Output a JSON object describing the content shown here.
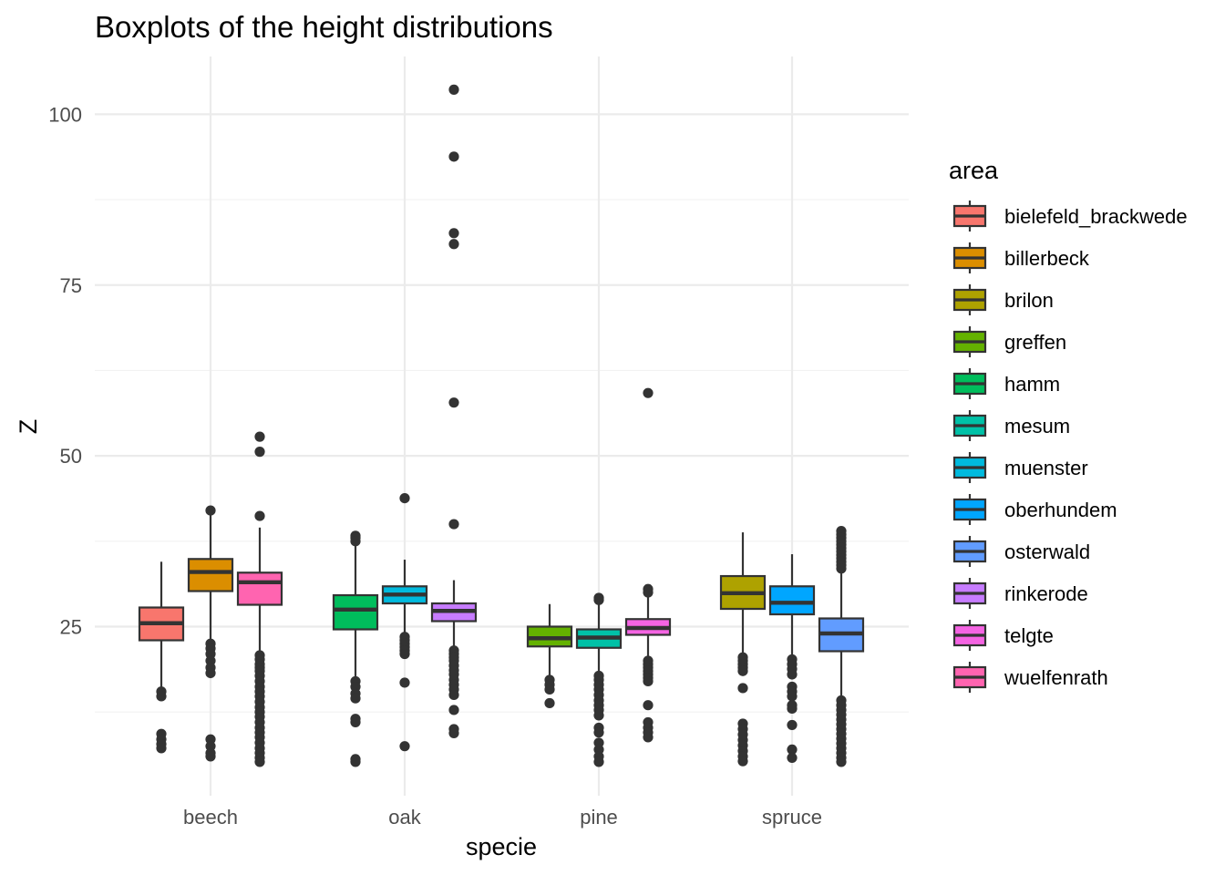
{
  "chart_data": {
    "type": "box",
    "title": "Boxplots of the height distributions",
    "xlabel": "specie",
    "ylabel": "Z",
    "ylim": [
      3,
      108
    ],
    "yticks": [
      25,
      50,
      75,
      100
    ],
    "grid": true,
    "legend": {
      "title": "area",
      "position": "right"
    },
    "categories": [
      "beech",
      "oak",
      "pine",
      "spruce"
    ],
    "series": [
      {
        "name": "bielefeld_brackwede",
        "color": "#F8766D"
      },
      {
        "name": "billerbeck",
        "color": "#DB8E00"
      },
      {
        "name": "brilon",
        "color": "#AEA200"
      },
      {
        "name": "greffen",
        "color": "#64B200"
      },
      {
        "name": "hamm",
        "color": "#00BD5C"
      },
      {
        "name": "mesum",
        "color": "#00C1A7"
      },
      {
        "name": "muenster",
        "color": "#00BADE"
      },
      {
        "name": "oberhundem",
        "color": "#00A6FF"
      },
      {
        "name": "osterwald",
        "color": "#619CFF"
      },
      {
        "name": "rinkerode",
        "color": "#C77CFF"
      },
      {
        "name": "telgte",
        "color": "#F564E3"
      },
      {
        "name": "wuelfenrath",
        "color": "#FF64B0"
      }
    ],
    "boxes": [
      {
        "category": "beech",
        "area": "bielefeld_brackwede",
        "whisker_low": 16,
        "q1": 23,
        "median": 25.5,
        "q3": 27.8,
        "whisker_high": 34.5,
        "outliers": [
          15.5,
          14.8,
          9.3,
          8.5,
          7.8,
          7.2
        ]
      },
      {
        "category": "beech",
        "area": "billerbeck",
        "whisker_low": 23,
        "q1": 30.2,
        "median": 33,
        "q3": 34.9,
        "whisker_high": 41.5,
        "outliers": [
          42,
          22.5,
          21.8,
          21,
          20,
          19,
          18.2,
          8.5,
          7.5,
          6.5,
          6
        ]
      },
      {
        "category": "beech",
        "area": "wuelfenrath",
        "whisker_low": 21,
        "q1": 28.2,
        "median": 31.5,
        "q3": 32.9,
        "whisker_high": 39.5,
        "outliers": [
          52.8,
          50.6,
          41.2,
          20.8,
          20.2,
          19.5,
          19,
          18.5,
          17.8,
          17,
          16.2,
          15.5,
          14.8,
          14,
          13.2,
          12.5,
          11.8,
          11,
          10.2,
          9.5,
          8.8,
          8,
          7.2,
          6.5,
          5.8,
          5.2
        ]
      },
      {
        "category": "oak",
        "area": "hamm",
        "whisker_low": 17.5,
        "q1": 24.6,
        "median": 27.5,
        "q3": 29.6,
        "whisker_high": 37,
        "outliers": [
          38.3,
          38,
          37.5,
          17,
          16.2,
          15.2,
          14.5,
          11.5,
          11,
          5.6,
          5.2
        ]
      },
      {
        "category": "oak",
        "area": "muenster",
        "whisker_low": 24,
        "q1": 28.4,
        "median": 29.7,
        "q3": 30.9,
        "whisker_high": 34.8,
        "outliers": [
          43.8,
          23.5,
          23,
          22.5,
          22,
          21.5,
          21,
          16.8,
          7.5
        ]
      },
      {
        "category": "oak",
        "area": "rinkerode",
        "whisker_low": 22,
        "q1": 25.8,
        "median": 27.3,
        "q3": 28.4,
        "whisker_high": 31.8,
        "outliers": [
          103.6,
          93.8,
          82.6,
          81,
          57.8,
          40,
          21.5,
          21,
          20.5,
          20,
          19.3,
          18.6,
          18,
          17.2,
          16.5,
          15.8,
          15,
          12.8,
          10,
          9.4
        ]
      },
      {
        "category": "pine",
        "area": "greffen",
        "whisker_low": 17.5,
        "q1": 22.1,
        "median": 23.3,
        "q3": 25,
        "whisker_high": 28.3,
        "outliers": [
          17.2,
          16.5,
          15.8,
          13.8
        ]
      },
      {
        "category": "pine",
        "area": "mesum",
        "whisker_low": 18,
        "q1": 21.9,
        "median": 23.4,
        "q3": 24.6,
        "whisker_high": 28.6,
        "outliers": [
          29.2,
          28.9,
          17.8,
          17.2,
          16.5,
          15.8,
          15,
          14.2,
          13.5,
          12.8,
          12,
          10.2,
          9.5,
          8,
          7,
          6,
          5.2
        ]
      },
      {
        "category": "pine",
        "area": "telgte",
        "whisker_low": 20.5,
        "q1": 23.8,
        "median": 24.8,
        "q3": 26.1,
        "whisker_high": 29.3,
        "outliers": [
          59.2,
          30.5,
          30,
          20,
          19.5,
          19,
          18.5,
          18,
          17.5,
          17,
          13.5,
          11,
          10.2,
          9.5,
          8.8
        ]
      },
      {
        "category": "spruce",
        "area": "brilon",
        "whisker_low": 21,
        "q1": 27.6,
        "median": 29.9,
        "q3": 32.4,
        "whisker_high": 38.8,
        "outliers": [
          20.5,
          20,
          19.5,
          19,
          18.5,
          16,
          10.8,
          10,
          9.2,
          8.4,
          7.6,
          6.8,
          6,
          5.3
        ]
      },
      {
        "category": "spruce",
        "area": "oberhundem",
        "whisker_low": 20.5,
        "q1": 26.8,
        "median": 28.5,
        "q3": 30.9,
        "whisker_high": 35.6,
        "outliers": [
          20.2,
          19.5,
          18.8,
          18,
          16.2,
          15.5,
          14.8,
          13.5,
          13,
          10.6,
          7,
          5.8
        ]
      },
      {
        "category": "spruce",
        "area": "osterwald",
        "whisker_low": 14.5,
        "q1": 21.4,
        "median": 24,
        "q3": 26.2,
        "whisker_high": 33,
        "outliers": [
          39,
          38.5,
          38,
          37.5,
          37,
          36.5,
          36,
          35.5,
          35,
          34.5,
          34,
          33.5,
          14.2,
          13.5,
          12.8,
          12.1,
          11.4,
          10.7,
          10,
          9.3,
          8.6,
          7.9,
          7.2,
          6.5,
          5.8,
          5.2
        ]
      }
    ]
  }
}
